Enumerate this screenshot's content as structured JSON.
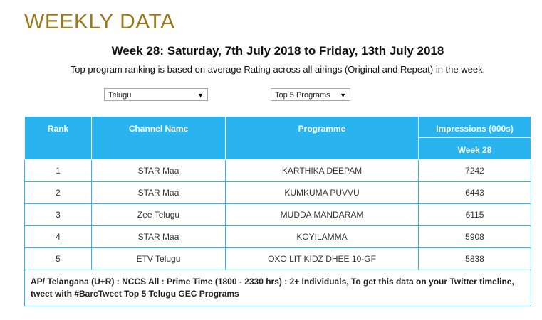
{
  "page_title": "WEEKLY DATA",
  "week_heading": "Week 28: Saturday, 7th July 2018 to Friday, 13th July 2018",
  "subheading": "Top program ranking is based on average Rating across all airings (Original and Repeat) in the week.",
  "filters": {
    "language": "Telugu",
    "top_n": "Top 5 Programs"
  },
  "table": {
    "headers": {
      "rank": "Rank",
      "channel": "Channel Name",
      "programme": "Programme",
      "impressions": "Impressions (000s)",
      "week": "Week 28"
    },
    "rows": [
      {
        "rank": "1",
        "channel": "STAR Maa",
        "programme": "KARTHIKA DEEPAM",
        "impressions": "7242"
      },
      {
        "rank": "2",
        "channel": "STAR Maa",
        "programme": "KUMKUMA PUVVU",
        "impressions": "6443"
      },
      {
        "rank": "3",
        "channel": "Zee Telugu",
        "programme": "MUDDA MANDARAM",
        "impressions": "6115"
      },
      {
        "rank": "4",
        "channel": "STAR Maa",
        "programme": "KOYILAMMA",
        "impressions": "5908"
      },
      {
        "rank": "5",
        "channel": "ETV Telugu",
        "programme": "OXO LIT KIDZ DHEE 10-GF",
        "impressions": "5838"
      }
    ],
    "footer": "AP/ Telangana (U+R) : NCCS All : Prime Time (1800 - 2330 hrs) : 2+ Individuals, To get this data on your Twitter timeline, tweet with #BarcTweet Top 5 Telugu GEC Programs"
  },
  "colors": {
    "title": "#9a7a1f",
    "header_bg": "#2ab4ef"
  }
}
